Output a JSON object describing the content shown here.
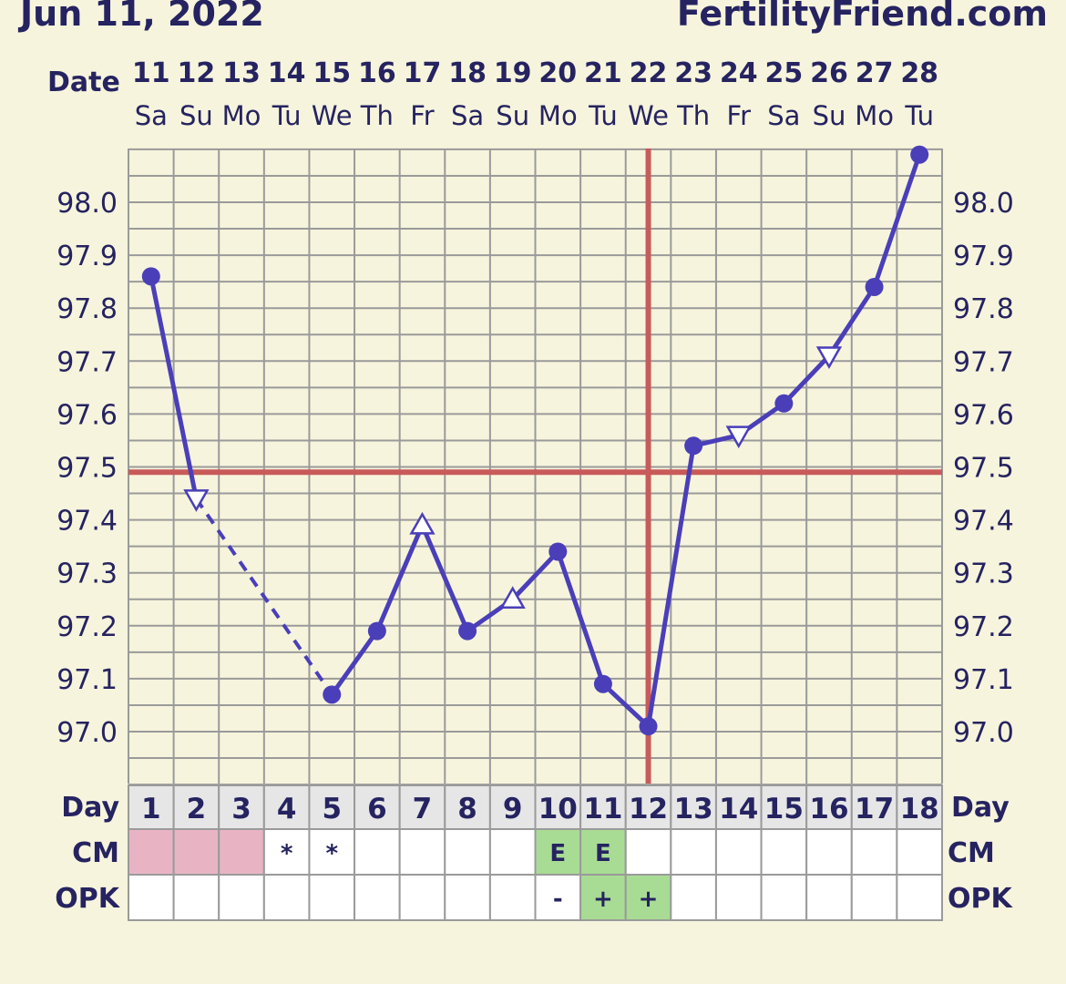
{
  "header": {
    "date_title": "Jun 11, 2022",
    "site": "FertilityFriend.com"
  },
  "labels": {
    "date": "Date",
    "day": "Day",
    "cm": "CM",
    "opk": "OPK"
  },
  "colors": {
    "background": "#f7f4dd",
    "text": "#252360",
    "series": "#4a3fb8",
    "coverline": "#c85a5a",
    "grid": "#9a9a9a",
    "cm_menstruation": "#e8b4c4",
    "fertile_green": "#a8dc94",
    "day_row": "#e6e6e6"
  },
  "chart_data": {
    "type": "line",
    "x": [
      1,
      2,
      3,
      4,
      5,
      6,
      7,
      8,
      9,
      10,
      11,
      12,
      13,
      14,
      15,
      16,
      17,
      18
    ],
    "dates": [
      "11",
      "12",
      "13",
      "14",
      "15",
      "16",
      "17",
      "18",
      "19",
      "20",
      "21",
      "22",
      "23",
      "24",
      "25",
      "26",
      "27",
      "28"
    ],
    "weekdays": [
      "Sa",
      "Su",
      "Mo",
      "Tu",
      "We",
      "Th",
      "Fr",
      "Sa",
      "Su",
      "Mo",
      "Tu",
      "We",
      "Th",
      "Fr",
      "Sa",
      "Su",
      "Mo",
      "Tu"
    ],
    "y_ticks": [
      "97.0",
      "97.1",
      "97.2",
      "97.3",
      "97.4",
      "97.5",
      "97.6",
      "97.7",
      "97.8",
      "97.9",
      "98.0"
    ],
    "ylim": [
      96.93,
      98.12
    ],
    "series": [
      {
        "values": [
          97.86,
          97.44,
          null,
          null,
          97.07,
          97.19,
          97.39,
          97.19,
          97.25,
          97.34,
          97.09,
          97.01,
          97.54,
          97.56,
          97.62,
          97.71,
          97.84,
          98.09
        ],
        "markers": [
          "circle",
          "triangle-down",
          null,
          null,
          "circle",
          "circle",
          "triangle-up",
          "circle",
          "triangle-up",
          "circle",
          "circle",
          "circle",
          "circle",
          "triangle-down",
          "circle",
          "triangle-down",
          "circle",
          "circle"
        ]
      }
    ],
    "dashed_segments": [
      [
        2,
        5
      ]
    ],
    "coverline": 97.49,
    "ovulation_day": 12,
    "cm": [
      "menstruation",
      "menstruation",
      "menstruation",
      "*",
      "*",
      "",
      "",
      "",
      "",
      "E",
      "E",
      "",
      "",
      "",
      "",
      "",
      "",
      ""
    ],
    "opk": [
      "",
      "",
      "",
      "",
      "",
      "",
      "",
      "",
      "",
      "-",
      "+",
      "+",
      "",
      "",
      "",
      "",
      "",
      ""
    ]
  }
}
